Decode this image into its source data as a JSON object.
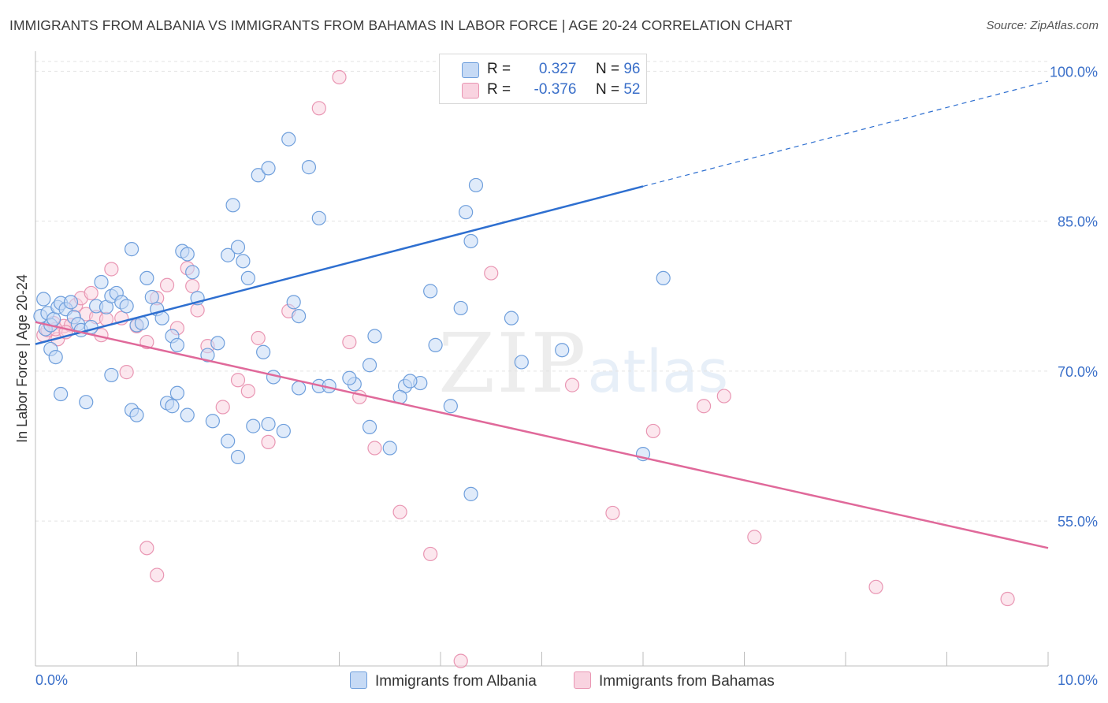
{
  "title": "IMMIGRANTS FROM ALBANIA VS IMMIGRANTS FROM BAHAMAS IN LABOR FORCE | AGE 20-24 CORRELATION CHART",
  "source": "Source: ZipAtlas.com",
  "watermark": {
    "zip": "ZIP",
    "atlas": "atlas"
  },
  "legend": {
    "albania": {
      "r_label": "R =",
      "r_value": "0.327",
      "n_label": "N =",
      "n_value": "96"
    },
    "bahamas": {
      "r_label": "R =",
      "r_value": "-0.376",
      "n_label": "N =",
      "n_value": "52"
    }
  },
  "colors": {
    "albania_fill": "#c6daf5",
    "albania_stroke": "#6f9fdc",
    "albania_line": "#2e6fd0",
    "bahamas_fill": "#f9d3e0",
    "bahamas_stroke": "#e996b3",
    "bahamas_line": "#e0699a",
    "tick_label": "#3a6fc9",
    "grid": "#e3e3e3"
  },
  "chart_data": {
    "type": "scatter",
    "title": "IMMIGRANTS FROM ALBANIA VS IMMIGRANTS FROM BAHAMAS IN LABOR FORCE | AGE 20-24 CORRELATION CHART",
    "xlabel": "",
    "ylabel": "In Labor Force | Age 20-24",
    "xlim": [
      0,
      10
    ],
    "ylim": [
      40.5,
      102
    ],
    "x_tick_labels": [
      "0.0%",
      "10.0%"
    ],
    "y_ticks": [
      55,
      70,
      85,
      100
    ],
    "y_tick_labels": [
      "55.0%",
      "70.0%",
      "85.0%",
      "100.0%"
    ],
    "grid": true,
    "legend_position": "top-center",
    "series": [
      {
        "name": "Immigrants from Albania",
        "stats": {
          "R": 0.327,
          "N": 96
        },
        "trend": {
          "x_start": 0,
          "y_start": 72.7,
          "x_end": 10,
          "y_end": 99.0,
          "solid_until_x": 6.0
        },
        "points": [
          [
            0.08,
            77.2
          ],
          [
            0.05,
            75.5
          ],
          [
            0.1,
            74.2
          ],
          [
            0.12,
            75.8
          ],
          [
            0.15,
            74.6
          ],
          [
            0.18,
            75.2
          ],
          [
            0.22,
            76.4
          ],
          [
            0.25,
            76.8
          ],
          [
            0.3,
            76.2
          ],
          [
            0.35,
            76.9
          ],
          [
            0.38,
            75.4
          ],
          [
            0.42,
            74.7
          ],
          [
            0.45,
            74.1
          ],
          [
            0.55,
            74.4
          ],
          [
            0.6,
            76.5
          ],
          [
            0.65,
            78.9
          ],
          [
            0.7,
            76.4
          ],
          [
            0.75,
            77.5
          ],
          [
            0.8,
            77.8
          ],
          [
            0.85,
            76.9
          ],
          [
            0.9,
            76.5
          ],
          [
            0.95,
            82.2
          ],
          [
            1.0,
            74.6
          ],
          [
            1.05,
            74.8
          ],
          [
            1.1,
            79.3
          ],
          [
            1.15,
            77.4
          ],
          [
            1.2,
            76.2
          ],
          [
            1.25,
            75.3
          ],
          [
            1.35,
            73.5
          ],
          [
            1.4,
            72.6
          ],
          [
            1.45,
            82.0
          ],
          [
            1.5,
            81.7
          ],
          [
            1.55,
            79.9
          ],
          [
            1.6,
            77.3
          ],
          [
            1.7,
            71.6
          ],
          [
            1.8,
            72.8
          ],
          [
            1.9,
            81.6
          ],
          [
            1.95,
            86.6
          ],
          [
            2.0,
            82.4
          ],
          [
            2.05,
            81.0
          ],
          [
            2.1,
            79.3
          ],
          [
            2.2,
            89.6
          ],
          [
            2.3,
            90.3
          ],
          [
            2.25,
            71.9
          ],
          [
            2.35,
            69.4
          ],
          [
            2.5,
            93.2
          ],
          [
            2.55,
            76.9
          ],
          [
            2.6,
            75.5
          ],
          [
            2.7,
            90.4
          ],
          [
            2.8,
            85.3
          ],
          [
            3.15,
            68.7
          ],
          [
            3.3,
            64.4
          ],
          [
            3.5,
            62.3
          ],
          [
            3.65,
            68.5
          ],
          [
            3.8,
            68.8
          ],
          [
            3.95,
            72.6
          ],
          [
            4.2,
            76.3
          ],
          [
            4.25,
            85.9
          ],
          [
            4.3,
            83.0
          ],
          [
            4.35,
            88.6
          ],
          [
            4.5,
            99.8
          ],
          [
            5.0,
            99.8
          ],
          [
            5.2,
            99.8
          ],
          [
            0.15,
            72.2
          ],
          [
            0.2,
            71.4
          ],
          [
            0.25,
            67.7
          ],
          [
            0.5,
            66.9
          ],
          [
            0.75,
            69.6
          ],
          [
            0.95,
            66.1
          ],
          [
            1.0,
            65.6
          ],
          [
            1.3,
            66.8
          ],
          [
            1.35,
            66.5
          ],
          [
            1.4,
            67.8
          ],
          [
            1.5,
            65.6
          ],
          [
            1.75,
            65.0
          ],
          [
            1.9,
            63.0
          ],
          [
            2.0,
            61.4
          ],
          [
            2.15,
            64.5
          ],
          [
            2.3,
            64.7
          ],
          [
            2.45,
            64.0
          ],
          [
            2.6,
            68.3
          ],
          [
            2.8,
            68.5
          ],
          [
            2.9,
            68.5
          ],
          [
            3.1,
            69.3
          ],
          [
            3.3,
            70.6
          ],
          [
            3.35,
            73.5
          ],
          [
            3.6,
            67.4
          ],
          [
            3.7,
            69.0
          ],
          [
            3.9,
            78.0
          ],
          [
            4.1,
            66.5
          ],
          [
            4.3,
            57.7
          ],
          [
            4.7,
            75.3
          ],
          [
            4.8,
            70.9
          ],
          [
            5.2,
            72.1
          ],
          [
            6.2,
            79.3
          ],
          [
            6.0,
            61.7
          ]
        ]
      },
      {
        "name": "Immigrants from Bahamas",
        "stats": {
          "R": -0.376,
          "N": 52
        },
        "trend": {
          "x_start": 0,
          "y_start": 74.9,
          "x_end": 10,
          "y_end": 52.3
        },
        "points": [
          [
            0.08,
            73.6
          ],
          [
            0.12,
            74.1
          ],
          [
            0.18,
            74.8
          ],
          [
            0.22,
            73.2
          ],
          [
            0.28,
            74.5
          ],
          [
            0.35,
            74.6
          ],
          [
            0.4,
            76.6
          ],
          [
            0.45,
            77.3
          ],
          [
            0.5,
            75.7
          ],
          [
            0.55,
            77.8
          ],
          [
            0.6,
            75.4
          ],
          [
            0.65,
            73.6
          ],
          [
            0.7,
            75.2
          ],
          [
            0.75,
            80.2
          ],
          [
            0.85,
            75.3
          ],
          [
            0.9,
            69.9
          ],
          [
            1.0,
            74.5
          ],
          [
            1.1,
            72.9
          ],
          [
            1.2,
            77.3
          ],
          [
            1.3,
            78.6
          ],
          [
            1.4,
            74.3
          ],
          [
            1.5,
            80.3
          ],
          [
            1.6,
            76.1
          ],
          [
            1.7,
            72.5
          ],
          [
            1.85,
            66.4
          ],
          [
            2.0,
            69.1
          ],
          [
            2.1,
            68.0
          ],
          [
            2.3,
            62.9
          ],
          [
            2.5,
            76.0
          ],
          [
            2.8,
            96.3
          ],
          [
            3.0,
            99.4
          ],
          [
            3.1,
            72.9
          ],
          [
            3.2,
            67.4
          ],
          [
            3.35,
            62.3
          ],
          [
            3.6,
            55.9
          ],
          [
            3.9,
            51.7
          ],
          [
            4.2,
            41.0
          ],
          [
            4.5,
            79.8
          ],
          [
            5.3,
            68.6
          ],
          [
            5.7,
            55.8
          ],
          [
            6.1,
            64.0
          ],
          [
            6.6,
            66.5
          ],
          [
            6.8,
            67.5
          ],
          [
            7.1,
            53.4
          ],
          [
            8.3,
            48.4
          ],
          [
            9.6,
            47.2
          ],
          [
            1.1,
            52.3
          ],
          [
            1.2,
            49.6
          ],
          [
            0.2,
            74.2
          ],
          [
            0.3,
            73.9
          ],
          [
            2.2,
            73.3
          ],
          [
            1.55,
            78.5
          ]
        ]
      }
    ]
  }
}
